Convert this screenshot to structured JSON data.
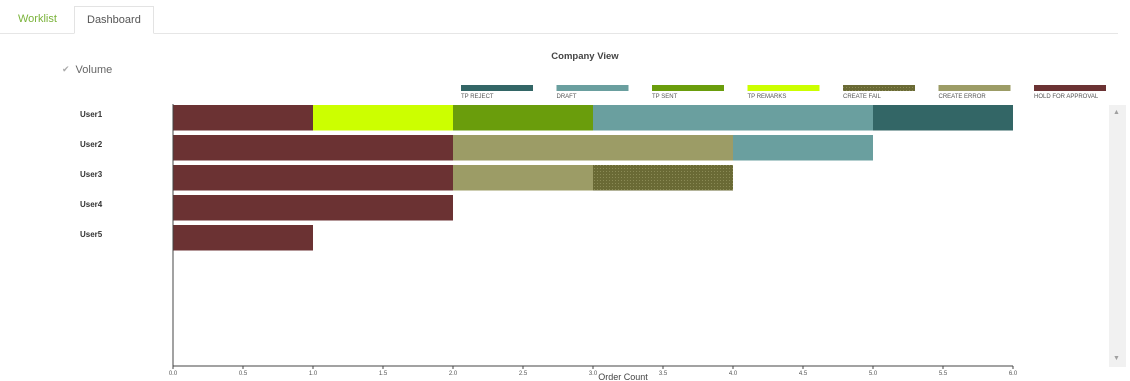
{
  "tabs": [
    {
      "label": "Worklist"
    },
    {
      "label": "Dashboard"
    }
  ],
  "volume": {
    "label": "Volume",
    "checked": true
  },
  "chart_data": {
    "type": "bar",
    "orientation": "horizontal",
    "stacked": true,
    "title": "Company View",
    "xlabel": "Order Count",
    "ylabel": "",
    "xlim": [
      0,
      6
    ],
    "x_ticks": [
      "0.0",
      "0.5",
      "1.0",
      "1.5",
      "2.0",
      "2.5",
      "3.0",
      "3.5",
      "4.0",
      "4.5",
      "5.0",
      "5.5",
      "6.0"
    ],
    "categories": [
      "User1",
      "User2",
      "User3",
      "User4",
      "User5"
    ],
    "legend_position": "top",
    "grid": false,
    "series": [
      {
        "name": "HOLD FOR APPROVAL",
        "color": "#6b3233",
        "values": [
          1,
          2,
          2,
          2,
          1
        ]
      },
      {
        "name": "TP REMARKS",
        "color": "#ccff00",
        "values": [
          1,
          0,
          0,
          0,
          0
        ]
      },
      {
        "name": "TP SENT",
        "color": "#6a9d0c",
        "values": [
          1,
          0,
          0,
          0,
          0
        ]
      },
      {
        "name": "CREATE ERROR",
        "color": "#9c9c66",
        "values": [
          0,
          2,
          1,
          0,
          0
        ]
      },
      {
        "name": "CREATE FAIL",
        "color": "#6a6a35",
        "values": [
          0,
          0,
          1,
          0,
          0
        ]
      },
      {
        "name": "DRAFT",
        "color": "#6a9f9f",
        "values": [
          2,
          1,
          0,
          0,
          0
        ]
      },
      {
        "name": "TP REJECT",
        "color": "#336666",
        "values": [
          1,
          0,
          0,
          0,
          0
        ]
      }
    ],
    "legend_order": [
      "TP REJECT",
      "DRAFT",
      "TP SENT",
      "TP REMARKS",
      "CREATE FAIL",
      "CREATE ERROR",
      "HOLD FOR APPROVAL"
    ]
  }
}
